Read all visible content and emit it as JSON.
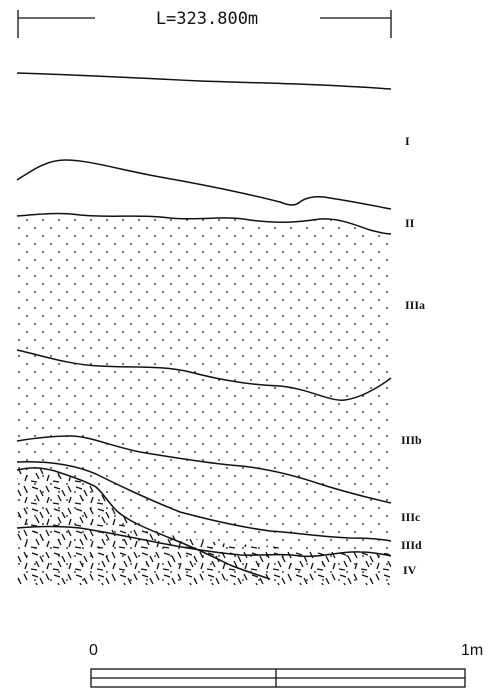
{
  "elevation_label": "L=323.800m",
  "layers": [
    {
      "id": "I",
      "label": "I"
    },
    {
      "id": "II",
      "label": "II"
    },
    {
      "id": "IIIa",
      "label": "IIIa"
    },
    {
      "id": "IIIb",
      "label": "IIIb"
    },
    {
      "id": "IIIc",
      "label": "IIIc"
    },
    {
      "id": "IIId",
      "label": "IIId"
    },
    {
      "id": "IV",
      "label": "IV"
    }
  ],
  "scale_bar": {
    "start_label": "0",
    "end_label": "1m"
  },
  "colors": {
    "line": "#111111",
    "background": "#ffffff"
  }
}
